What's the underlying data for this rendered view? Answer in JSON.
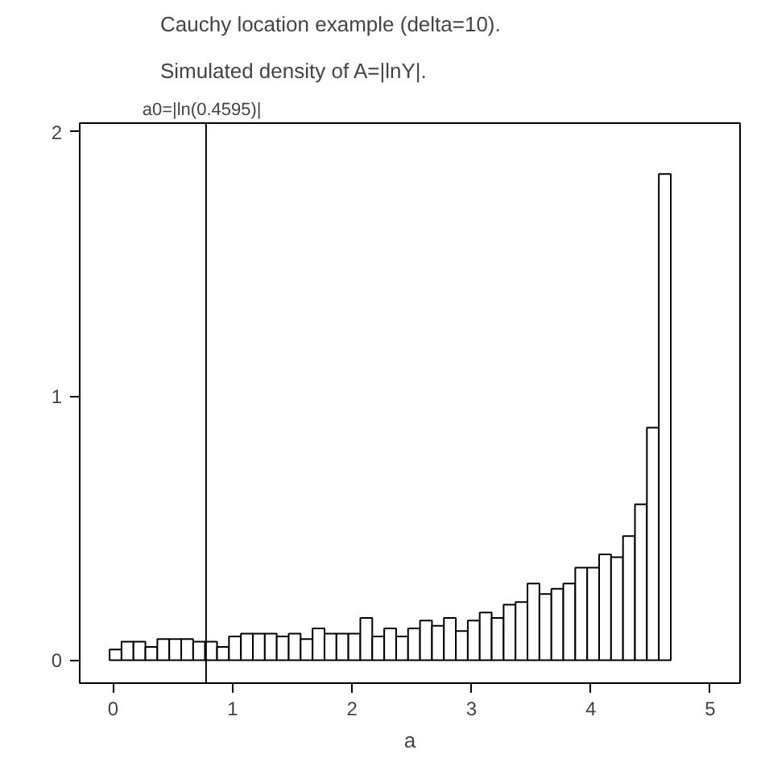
{
  "chart_data": {
    "type": "histogram",
    "title": "Cauchy location example (delta=10).",
    "subtitle": "Simulated density of A=|lnY|.",
    "xlabel": "a",
    "bins": [
      -0.03,
      0.07,
      0.17,
      0.27,
      0.37,
      0.47,
      0.57,
      0.67,
      0.77,
      0.87,
      0.97,
      1.07,
      1.17,
      1.27,
      1.37,
      1.47,
      1.57,
      1.67,
      1.77,
      1.87,
      1.97,
      2.07,
      2.17,
      2.27,
      2.37,
      2.47,
      2.57,
      2.67,
      2.77,
      2.87,
      2.97,
      3.07,
      3.17,
      3.27,
      3.37,
      3.47,
      3.57,
      3.67,
      3.77,
      3.87,
      3.97,
      4.07,
      4.17,
      4.27,
      4.37,
      4.47,
      4.57,
      4.67
    ],
    "values": [
      0.04,
      0.07,
      0.07,
      0.05,
      0.08,
      0.08,
      0.08,
      0.07,
      0.07,
      0.05,
      0.09,
      0.1,
      0.1,
      0.1,
      0.09,
      0.1,
      0.08,
      0.12,
      0.1,
      0.1,
      0.1,
      0.16,
      0.09,
      0.12,
      0.09,
      0.12,
      0.15,
      0.13,
      0.16,
      0.11,
      0.15,
      0.18,
      0.16,
      0.21,
      0.22,
      0.29,
      0.25,
      0.27,
      0.29,
      0.35,
      0.35,
      0.4,
      0.39,
      0.47,
      0.59,
      0.88,
      1.84
    ],
    "color": "#ffffff",
    "xlim": [
      -0.28,
      5.25
    ],
    "ylim": [
      -0.087,
      2.033
    ],
    "xticks": [
      0,
      1,
      2,
      3,
      4,
      5
    ],
    "yticks": [
      0,
      1,
      2
    ],
    "ref_lines": [
      {
        "axis": "x",
        "value": 0.778,
        "label": "a0=|ln(0.4595)|",
        "color": "#000000"
      }
    ],
    "grid": false
  }
}
